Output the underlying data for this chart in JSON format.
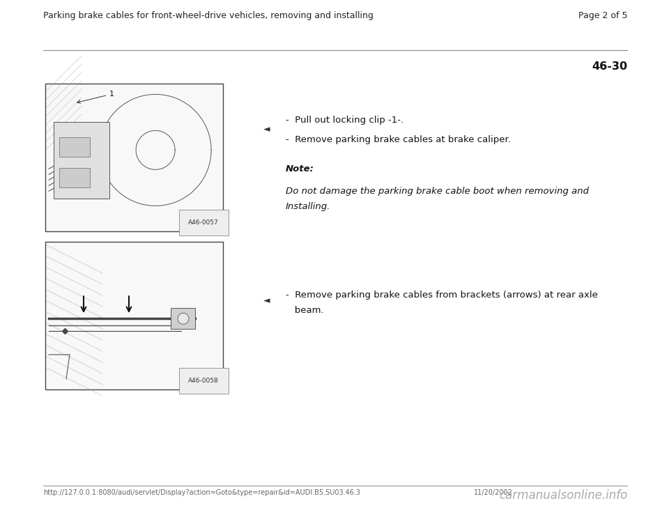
{
  "header_left": "Parking brake cables for front-wheel-drive vehicles, removing and installing",
  "header_right": "Page 2 of 5",
  "page_number": "46-30",
  "bg_color": "#ffffff",
  "header_line_color": "#888888",
  "footer_line_color": "#888888",
  "footer_url": "http://127.0.0.1:8080/audi/servlet/Display?action=Goto&type=repair&id=AUDI.B5.SU03.46.3",
  "footer_date": "11/20/2002",
  "footer_brand": "carmanualsonline.info",
  "image1_label": "A46-0057",
  "image2_label": "A46-0058",
  "section1_bullets": [
    "-  Pull out locking clip -1-.",
    "-  Remove parking brake cables at brake caliper."
  ],
  "section1_note_title": "Note:",
  "section1_note_body": "Do not damage the parking brake cable boot when removing and\nInstalling.",
  "section2_bullet": "-  Remove parking brake cables from brackets (arrows) at rear axle\n   beam.",
  "header_font_size": 9.0,
  "body_font_size": 9.5,
  "note_title_font_size": 9.5,
  "note_body_font_size": 9.5,
  "footer_font_size": 7.0,
  "pagenum_font_size": 11.5
}
